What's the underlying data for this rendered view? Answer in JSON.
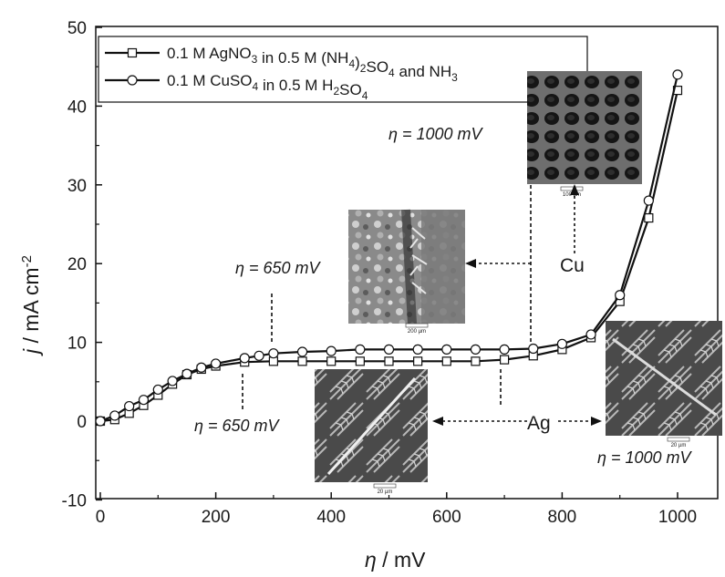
{
  "chart_data": {
    "type": "line",
    "xlabel": {
      "symbol": "η",
      "text": " / mV"
    },
    "ylabel": {
      "symbol": "j",
      "text": " / mA cm",
      "sup": "-2"
    },
    "xlim": [
      -10,
      1110
    ],
    "ylim": [
      -10,
      50
    ],
    "xticks": [
      "0",
      "200",
      "400",
      "600",
      "800",
      "1000"
    ],
    "yticks": [
      "-10",
      "0",
      "10",
      "20",
      "30",
      "40",
      "50"
    ],
    "legend_position": "top-left",
    "series": [
      {
        "name": "0.1 M AgNO3 in 0.5 M (NH4)2SO4 and NH3",
        "marker": "square",
        "x": [
          0,
          25,
          50,
          75,
          100,
          125,
          150,
          175,
          200,
          250,
          300,
          350,
          400,
          450,
          500,
          550,
          600,
          650,
          700,
          750,
          800,
          850,
          900,
          950,
          1000
        ],
        "y": [
          0,
          0.2,
          1.0,
          2.0,
          3.3,
          4.7,
          5.9,
          6.6,
          7.0,
          7.5,
          7.6,
          7.6,
          7.6,
          7.6,
          7.6,
          7.6,
          7.6,
          7.6,
          7.8,
          8.3,
          9.1,
          10.6,
          15.2,
          25.8,
          42.0
        ]
      },
      {
        "name": "0.1 M CuSO4 in 0.5 M H2SO4",
        "marker": "circle",
        "x": [
          0,
          25,
          50,
          75,
          100,
          125,
          150,
          175,
          200,
          250,
          275,
          300,
          350,
          400,
          450,
          500,
          550,
          600,
          650,
          700,
          750,
          800,
          850,
          900,
          950,
          1000
        ],
        "y": [
          0,
          0.7,
          1.9,
          2.7,
          4.0,
          5.1,
          6.0,
          6.8,
          7.3,
          8.0,
          8.3,
          8.6,
          8.8,
          8.9,
          9.1,
          9.1,
          9.1,
          9.1,
          9.1,
          9.1,
          9.2,
          9.8,
          11.0,
          16.0,
          28.0,
          44.0
        ]
      }
    ],
    "legend": [
      {
        "marker": "square",
        "parts": [
          [
            "0.1 M AgNO",
            ""
          ],
          [
            "3",
            "sub"
          ],
          [
            " in 0.5 M (NH",
            ""
          ],
          [
            "4",
            "sub"
          ],
          [
            ")",
            ""
          ],
          [
            "2",
            "sub"
          ],
          [
            "SO",
            ""
          ],
          [
            "4",
            "sub"
          ],
          [
            " and NH",
            ""
          ],
          [
            "3",
            "sub"
          ]
        ]
      },
      {
        "marker": "circle",
        "parts": [
          [
            "0.1 M CuSO",
            ""
          ],
          [
            "4",
            "sub"
          ],
          [
            " in 0.5 M H",
            ""
          ],
          [
            "2",
            "sub"
          ],
          [
            "SO",
            ""
          ],
          [
            "4",
            "sub"
          ]
        ]
      }
    ],
    "annotations": {
      "cu_1000": "η = 1000 mV",
      "cu_650": "η = 650 mV",
      "ag_650": "η = 650 mV",
      "ag_1000": "η = 1000 mV",
      "cu_label": "Cu",
      "ag_label": "Ag"
    },
    "scale_bars": {
      "cu_1000": "100 µm",
      "cu_650": "200 µm",
      "ag_650": "20 µm",
      "ag_1000": "20 µm"
    },
    "colors": {
      "line": "#111111",
      "marker_fill": "#ffffff",
      "image_dark": "#3a3a3a"
    }
  }
}
